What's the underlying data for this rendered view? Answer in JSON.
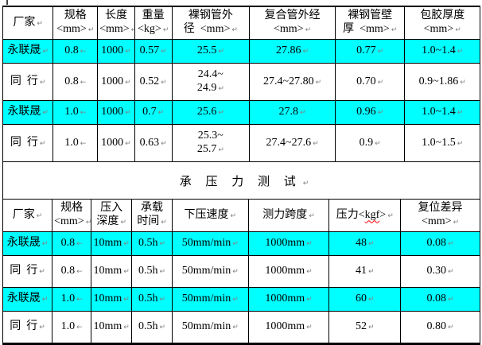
{
  "page": {
    "background": "#ffffff",
    "highlight_color": "#00ffff",
    "border_color": "#000000",
    "text_color": "#000000",
    "mark_color": "#808080",
    "squiggle_color": "#ff0000"
  },
  "section_title": {
    "text": "承 压 力 测 试",
    "mark": "↵"
  },
  "tables": [
    {
      "id": "t1",
      "name": "pipe-dimension-table",
      "headers": [
        {
          "t": "厂家",
          "m": "↵"
        },
        {
          "t": "规格\n<mm>",
          "m": "↵"
        },
        {
          "t": "长度\n<mm>",
          "m": "↵"
        },
        {
          "t": "重量\n<kg>",
          "m": "↵"
        },
        {
          "t": "裸钢管外\n径  <mm>",
          "m": "↵"
        },
        {
          "t": "复合管外经\n<mm>",
          "m": "↵"
        },
        {
          "t": "裸钢管壁\n厚  <mm>",
          "m": "↵"
        },
        {
          "t": "包胶厚度\n<mm>",
          "m": "↵"
        }
      ],
      "rows": [
        {
          "hl": true,
          "cells": [
            {
              "t": "永联晟",
              "m": "↵"
            },
            {
              "t": "0.8",
              "m": "←"
            },
            {
              "t": "1000",
              "m": "↵"
            },
            {
              "t": "0.57",
              "m": "↵"
            },
            {
              "t": "25.5",
              "m": "↵"
            },
            {
              "t": "27.86",
              "m": "↵"
            },
            {
              "t": "0.77",
              "m": "↵"
            },
            {
              "t": "1.0~1.4",
              "m": "↵"
            }
          ]
        },
        {
          "hl": false,
          "cells": [
            {
              "t": "同  行",
              "m": "↵"
            },
            {
              "t": "0.8",
              "m": "←"
            },
            {
              "t": "1000",
              "m": "↵"
            },
            {
              "t": "0.52",
              "m": "↵"
            },
            {
              "t": "24.4~\n24.9",
              "m": "↵"
            },
            {
              "t": "27.4~27.80",
              "m": "↵"
            },
            {
              "t": "0.70",
              "m": "↵"
            },
            {
              "t": "0.9~1.86",
              "m": "↵"
            }
          ]
        },
        {
          "hl": true,
          "cells": [
            {
              "t": "永联晟",
              "m": "↵"
            },
            {
              "t": "1.0",
              "m": "←"
            },
            {
              "t": "1000",
              "m": "↵"
            },
            {
              "t": "0.7",
              "m": "↵"
            },
            {
              "t": "25.6",
              "m": "↵"
            },
            {
              "t": "27.8",
              "m": "↵"
            },
            {
              "t": "0.96",
              "m": "↵"
            },
            {
              "t": "1.0~1.4",
              "m": "↵"
            }
          ]
        },
        {
          "hl": false,
          "cells": [
            {
              "t": "同  行",
              "m": "↵"
            },
            {
              "t": "1.0",
              "m": "←"
            },
            {
              "t": "1000",
              "m": "↵"
            },
            {
              "t": "0.63",
              "m": "↵"
            },
            {
              "t": "25.3~\n25.7",
              "m": "↵"
            },
            {
              "t": "27.4~27.6",
              "m": "↵"
            },
            {
              "t": "0.9",
              "m": "↵"
            },
            {
              "t": "1.0~1.5",
              "m": "↵"
            }
          ]
        }
      ]
    },
    {
      "id": "t2",
      "name": "pressure-test-table",
      "headers": [
        {
          "t": "厂家",
          "m": "↵"
        },
        {
          "t": "规格\n<mm>",
          "m": "↵"
        },
        {
          "t": "压入\n深度",
          "m": "↵"
        },
        {
          "t": "承载\n时间",
          "m": "↵"
        },
        {
          "t": "下压速度",
          "m": "↵"
        },
        {
          "t": "测力跨度",
          "m": "↵"
        },
        {
          "pre": "压力<",
          "sq": "kgf",
          "post": ">",
          "m": "↵"
        },
        {
          "t": "复位差异\n<mm>",
          "m": "↵"
        }
      ],
      "rows": [
        {
          "hl": true,
          "cells": [
            {
              "t": "永联晟",
              "m": "↵"
            },
            {
              "t": "0.8",
              "m": "←"
            },
            {
              "t": "10mm",
              "m": "↵"
            },
            {
              "t": "0.5h",
              "m": "↵"
            },
            {
              "t": "50mm/min",
              "m": "↵"
            },
            {
              "t": "1000mm",
              "m": "↵"
            },
            {
              "t": "48",
              "m": "↵"
            },
            {
              "t": "0.08",
              "m": "↵"
            }
          ]
        },
        {
          "hl": false,
          "cells": [
            {
              "t": "同  行",
              "m": "↵"
            },
            {
              "t": "0.8",
              "m": "←"
            },
            {
              "t": "10mm",
              "m": "↵"
            },
            {
              "t": "0.5h",
              "m": "↵"
            },
            {
              "t": "50mm/min",
              "m": "↵"
            },
            {
              "t": "1000mm",
              "m": "↵"
            },
            {
              "t": "41",
              "m": "↵"
            },
            {
              "t": "0.30",
              "m": "↵"
            }
          ]
        },
        {
          "hl": true,
          "cells": [
            {
              "t": "永联晟",
              "m": "↵"
            },
            {
              "t": "1.0",
              "m": "←"
            },
            {
              "t": "10mm",
              "m": "↵"
            },
            {
              "t": "0.5h",
              "m": "↵"
            },
            {
              "t": "50mm/min",
              "m": "↵"
            },
            {
              "t": "1000mm",
              "m": "↵"
            },
            {
              "t": "60",
              "m": "↵"
            },
            {
              "t": "0.08",
              "m": "↵"
            }
          ]
        },
        {
          "hl": false,
          "cells": [
            {
              "t": "同  行",
              "m": "↵"
            },
            {
              "t": "1.0",
              "m": "←"
            },
            {
              "t": "10mm",
              "m": "↵"
            },
            {
              "t": "0.5h",
              "m": "↵"
            },
            {
              "t": "50mm/min",
              "m": "↵"
            },
            {
              "t": "1000mm",
              "m": "↵"
            },
            {
              "t": "52",
              "m": "↵"
            },
            {
              "t": "0.80",
              "m": "↵"
            }
          ]
        }
      ]
    }
  ]
}
